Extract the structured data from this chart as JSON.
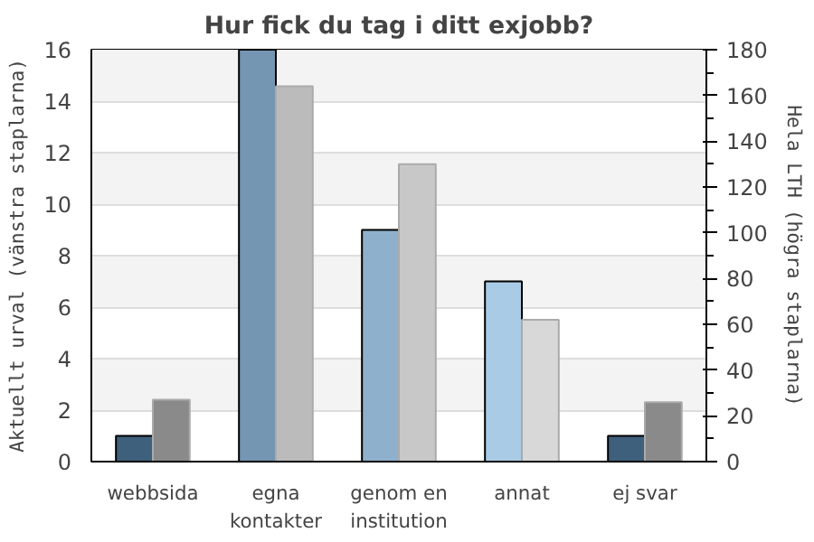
{
  "chart_data": {
    "type": "bar",
    "title": "Hur fick du tag i ditt exjobb?",
    "categories": [
      "webbsida",
      "egna\nkontakter",
      "genom en\ninstitution",
      "annat",
      "ej svar"
    ],
    "ylabel": "Aktuellt urval (vänstra staplarna)",
    "y2label": "Hela LTH (högra staplarna)",
    "series": [
      {
        "colors": [
          "#3f607c",
          "#7496b2",
          "#8fb0cc",
          "#aacbe6",
          "#3f607c"
        ],
        "values": [
          1,
          16,
          9,
          7,
          1
        ]
      },
      {
        "axis": "y2",
        "colors": [
          "#8a8a8a",
          "#bbbbbb",
          "#c8c8c8",
          "#d8d8d8",
          "#8a8a8a"
        ],
        "values": [
          27,
          164,
          130,
          62,
          26
        ]
      }
    ],
    "ylim": [
      0,
      16
    ],
    "yticks": [
      0,
      2,
      4,
      6,
      8,
      10,
      12,
      14,
      16
    ],
    "y2lim": [
      0,
      180
    ],
    "y2ticks": [
      0,
      20,
      40,
      60,
      80,
      100,
      120,
      140,
      160,
      180
    ],
    "grid": "y"
  }
}
